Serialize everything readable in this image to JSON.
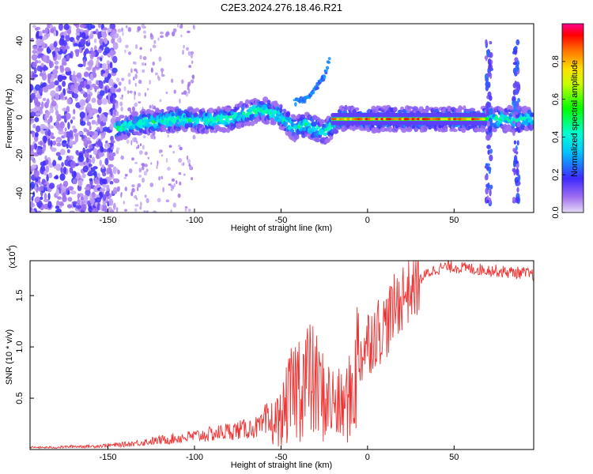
{
  "title": "C2E3.2024.276.18.46.R21",
  "chart_data": [
    {
      "type": "heatmap",
      "xlabel": "Height of straight line (km)",
      "ylabel": "Frequency (Hz)",
      "xlim": [
        -195,
        96
      ],
      "ylim": [
        -50,
        49
      ],
      "x_ticks": [
        -150,
        -100,
        -50,
        0,
        50
      ],
      "y_ticks": [
        -40,
        -20,
        0,
        20,
        40
      ],
      "colorbar": {
        "label": "Normalized spectral amplitude",
        "ticks": [
          "0.0",
          "0.2",
          "0.4",
          "0.6",
          "0.8"
        ],
        "range": [
          0,
          1
        ]
      },
      "features": [
        {
          "kind": "noise",
          "x_range": [
            -195,
            -145
          ],
          "f_range": [
            -50,
            49
          ],
          "amplitude": 0.15
        },
        {
          "kind": "ridge",
          "points": [
            [
              -145,
              -6
            ],
            [
              -130,
              -3
            ],
            [
              -110,
              -1
            ],
            [
              -95,
              -2
            ],
            [
              -80,
              -1
            ],
            [
              -70,
              2
            ],
            [
              -60,
              4
            ],
            [
              -50,
              0
            ],
            [
              -42,
              -6
            ],
            [
              -35,
              -4
            ],
            [
              -25,
              -8
            ],
            [
              -18,
              -2
            ],
            [
              -12,
              0
            ],
            [
              0,
              -1
            ],
            [
              30,
              -1
            ],
            [
              68,
              -1
            ],
            [
              90,
              -1
            ],
            [
              96,
              -1
            ]
          ],
          "amplitude": 0.45
        },
        {
          "kind": "strong_line",
          "x_range": [
            -20,
            68
          ],
          "frequency": -1,
          "amplitude": 0.95
        },
        {
          "kind": "arc",
          "points": [
            [
              -42,
              8
            ],
            [
              -35,
              10
            ],
            [
              -30,
              15
            ],
            [
              -25,
              22
            ],
            [
              -22,
              30
            ]
          ],
          "amplitude": 0.25
        },
        {
          "kind": "spike",
          "x": 70,
          "f_range": [
            -45,
            40
          ],
          "amplitude": 0.2
        },
        {
          "kind": "spike",
          "x": 86,
          "f_range": [
            -45,
            40
          ],
          "amplitude": 0.2
        }
      ]
    },
    {
      "type": "line",
      "xlabel": "Height of straight line (km)",
      "ylabel": "SNR (10 * v/v)",
      "y_multiplier": "(x10",
      "y_multiplier_exp": "4",
      "y_multiplier_close": ")",
      "xlim": [
        -195,
        96
      ],
      "ylim": [
        0,
        1.84
      ],
      "x_ticks": [
        -150,
        -100,
        -50,
        0,
        50
      ],
      "y_ticks": [
        "0.5",
        "1.0",
        "1.5"
      ],
      "color": "#ee3333",
      "series": [
        {
          "x": [
            -195,
            -180,
            -170,
            -160,
            -150,
            -140,
            -130,
            -120,
            -110,
            -100,
            -90,
            -80,
            -70,
            -60,
            -55,
            -50,
            -45,
            -40,
            -35,
            -30,
            -25,
            -20,
            -15,
            -10,
            -5,
            0,
            5,
            10,
            15,
            20,
            25,
            30,
            35,
            40,
            45,
            50,
            60,
            70,
            80,
            90,
            96
          ],
          "y": [
            0.02,
            0.02,
            0.03,
            0.03,
            0.04,
            0.05,
            0.07,
            0.09,
            0.11,
            0.13,
            0.15,
            0.18,
            0.2,
            0.23,
            0.26,
            0.3,
            0.5,
            0.65,
            0.7,
            0.62,
            0.5,
            0.45,
            0.4,
            0.5,
            0.9,
            1.05,
            1.15,
            1.2,
            1.35,
            1.5,
            1.58,
            1.65,
            1.72,
            1.76,
            1.78,
            1.78,
            1.76,
            1.75,
            1.73,
            1.72,
            1.7
          ]
        }
      ]
    }
  ]
}
